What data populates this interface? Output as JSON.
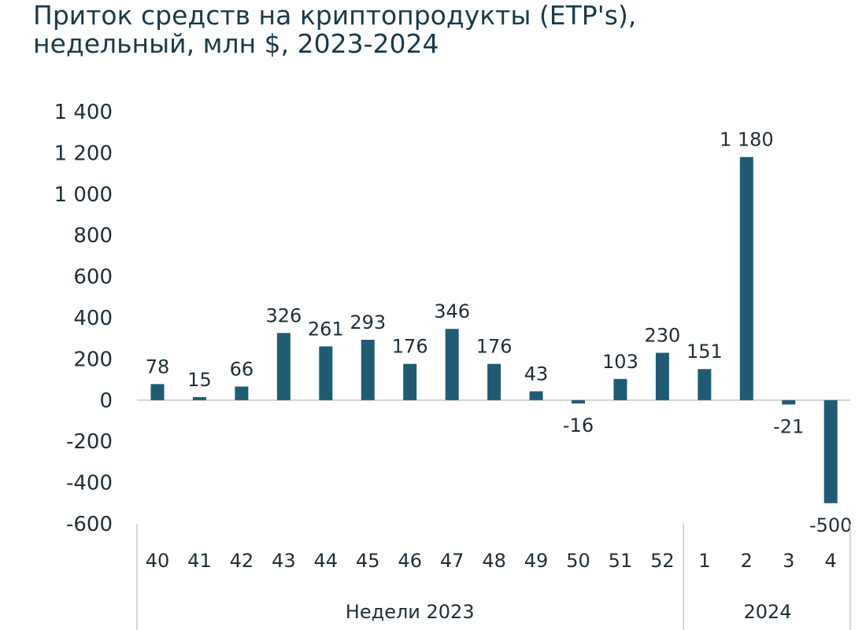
{
  "chart_data": {
    "type": "bar",
    "title": "Приток средств на криптопродукты (ETP's),\nнедельный, млн $, 2023-2024",
    "categories": [
      "40",
      "41",
      "42",
      "43",
      "44",
      "45",
      "46",
      "47",
      "48",
      "49",
      "50",
      "51",
      "52",
      "1",
      "2",
      "3",
      "4"
    ],
    "values": [
      78,
      15,
      66,
      326,
      261,
      293,
      176,
      346,
      176,
      43,
      -16,
      103,
      230,
      151,
      1180,
      -21,
      -500
    ],
    "data_labels": [
      "78",
      "15",
      "66",
      "326",
      "261",
      "293",
      "176",
      "346",
      "176",
      "43",
      "-16",
      "103",
      "230",
      "151",
      "1 180",
      "-21",
      "-500"
    ],
    "category_groups": [
      {
        "label": "Недели 2023",
        "count": 13
      },
      {
        "label": "2024",
        "count": 4
      }
    ],
    "ylim": [
      -600,
      1400
    ],
    "yticks": [
      1400,
      1200,
      1000,
      800,
      600,
      400,
      200,
      0,
      -200,
      -400,
      -600
    ],
    "ytick_labels": [
      "1 400",
      "1 200",
      "1 000",
      "800",
      "600",
      "400",
      "200",
      "0",
      "-200",
      "-400",
      "-600"
    ],
    "bar_color": "#1f5c73",
    "axis_color": "#c8c8c8",
    "grid": false,
    "legend": "none"
  }
}
